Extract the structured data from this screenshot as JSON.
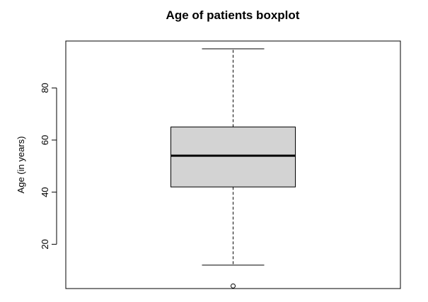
{
  "chart_data": {
    "type": "boxplot",
    "title": "Age of patients boxplot",
    "xlabel": "",
    "ylabel": "Age (in years)",
    "ylim": [
      3,
      98
    ],
    "yticks": [
      20,
      40,
      60,
      80
    ],
    "ytick_labels": [
      "20",
      "40",
      "60",
      "80"
    ],
    "grid": false,
    "box": {
      "whisker_low": 12,
      "q1": 42,
      "median": 54,
      "q3": 65,
      "whisker_high": 95,
      "outliers": [
        4
      ]
    },
    "colors": {
      "box_fill": "#d3d3d3",
      "stroke": "#000000",
      "background": "#ffffff"
    }
  }
}
